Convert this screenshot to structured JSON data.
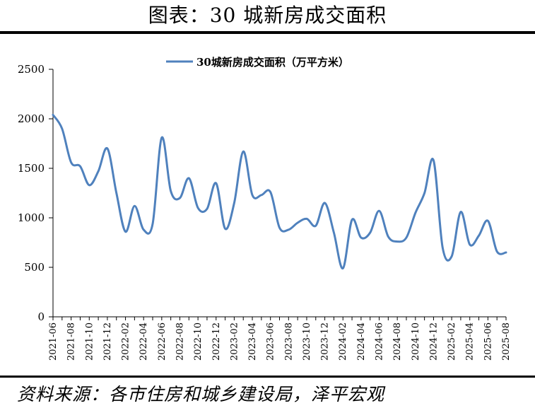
{
  "header": {
    "title": "图表：30 城新房成交面积"
  },
  "footer": {
    "source": "资料来源：各市住房和城乡建设局，泽平宏观"
  },
  "colors": {
    "series": "#4f81bd",
    "axis": "#000000",
    "rule": "#000000"
  },
  "chart_data": {
    "type": "line",
    "title": "",
    "xlabel": "",
    "ylabel": "",
    "ylim": [
      0,
      2500
    ],
    "yticks": [
      0,
      500,
      1000,
      1500,
      2000,
      2500
    ],
    "grid": false,
    "legend_position": "top-center",
    "x_tick_labels": [
      "2021-06",
      "2021-08",
      "2021-10",
      "2021-12",
      "2022-02",
      "2022-04",
      "2022-06",
      "2022-08",
      "2022-10",
      "2022-12",
      "2023-02",
      "2023-04",
      "2023-06",
      "2023-08",
      "2023-10",
      "2023-12",
      "2024-02",
      "2024-04",
      "2024-06",
      "2024-08",
      "2024-10",
      "2024-12",
      "2025-02",
      "2025-04",
      "2025-06",
      "2025-08"
    ],
    "x": [
      "2021-06",
      "2021-07",
      "2021-08",
      "2021-09",
      "2021-10",
      "2021-11",
      "2021-12",
      "2022-01",
      "2022-02",
      "2022-03",
      "2022-04",
      "2022-05",
      "2022-06",
      "2022-07",
      "2022-08",
      "2022-09",
      "2022-10",
      "2022-11",
      "2022-12",
      "2023-01",
      "2023-02",
      "2023-03",
      "2023-04",
      "2023-05",
      "2023-06",
      "2023-07",
      "2023-08",
      "2023-09",
      "2023-10",
      "2023-11",
      "2023-12",
      "2024-01",
      "2024-02",
      "2024-03",
      "2024-04",
      "2024-05",
      "2024-06",
      "2024-07",
      "2024-08",
      "2024-09",
      "2024-10",
      "2024-11",
      "2024-12",
      "2025-01",
      "2025-02",
      "2025-03",
      "2025-04",
      "2025-05",
      "2025-06",
      "2025-07",
      "2025-08"
    ],
    "series": [
      {
        "name": "30城新房成交面积（万平方米）",
        "values": [
          2040,
          1900,
          1560,
          1520,
          1330,
          1470,
          1700,
          1250,
          860,
          1120,
          880,
          940,
          1810,
          1270,
          1200,
          1400,
          1100,
          1090,
          1350,
          890,
          1150,
          1670,
          1230,
          1230,
          1260,
          900,
          880,
          950,
          990,
          920,
          1150,
          850,
          490,
          980,
          800,
          850,
          1070,
          810,
          760,
          800,
          1050,
          1250,
          1580,
          700,
          610,
          1060,
          730,
          820,
          970,
          660,
          650
        ]
      }
    ]
  }
}
